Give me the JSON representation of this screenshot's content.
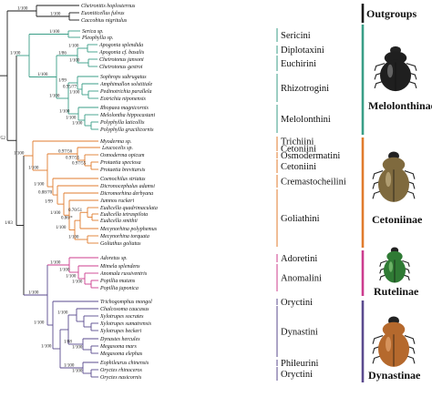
{
  "colors": {
    "outgroup": "#1a1a1a",
    "melolonthinae": "#3a9e87",
    "cetoniinae": "#e07b2d",
    "rutelinae": "#cc3c8e",
    "dynastinae": "#5a4a8e"
  },
  "taxa": [
    "Cheironitis hoplosternus",
    "Euoniticellus fulvus",
    "Caccobius nigritulus",
    "Serica sp.",
    "Pleophylla sp.",
    "Apogonia splendida",
    "Apogonia cf. basalis",
    "Cheirotonus jansoni",
    "Cheirotonus gestroi",
    "Sophrops subrugatus",
    "Amphimallon solstitiale",
    "Pedinotrichia parallela",
    "Eotrichia niponensis",
    "Rhopaea magnicornis",
    "Melolontha hippocastani",
    "Polyphylla laticollis",
    "Polyphylla gracilicornis",
    "Myoderma sp.",
    "Leucocelis sp.",
    "Osmoderma opicum",
    "Protaetia speciosa",
    "Protaetia brevitarsis",
    "Coenochilus striatus",
    "Dicronocephalus adamsi",
    "Dicromorhina derbyana",
    "Jumnos ruckeri",
    "Eudicella quadrimaculata",
    "Eudicella tetraspilota",
    "Eudicella smithii",
    "Mecynorhina polyphemus",
    "Mecynorhina torquata",
    "Goliathus goliatus",
    "Adoretus sp.",
    "Mimela splendens",
    "Anomala russiventris",
    "Popillia mutans",
    "Popillia japonica",
    "Trichogomphus mongol",
    "Chalcosoma caucasus",
    "Xylotrupes socrates",
    "Xylotrupes sumatrensis",
    "Xylotrupes beckeri",
    "Dynastes hercules",
    "Megasoma mars",
    "Megasoma elephas",
    "Eophileurus chinensis",
    "Oryctes rhinoceros",
    "Oryctes nasicornis"
  ],
  "support_values": [
    "1/100",
    "1/100",
    "1/100",
    "1/100",
    "1/86",
    "1/100",
    "1/100",
    "0.95/77",
    "1/99",
    "1/100",
    "1/100",
    "1/100",
    "1/100",
    "1/100",
    "1/100",
    "0.97/55",
    "0.97/56",
    "0.97/55",
    "0.88/70",
    "0.86/*",
    "0.70/51",
    "1/100",
    "1/100",
    "1/100",
    "1/100",
    "1/100",
    "1/100",
    "1/100",
    "1/100",
    "1/100",
    "1/52",
    "1/83",
    "1/100",
    "1/99",
    "1/100",
    "1/100",
    "1/100",
    "1/100",
    "1/88",
    "1/100",
    "1/100",
    "1/100"
  ],
  "tribes": [
    "Sericini",
    "Diplotaxini",
    "Euchirini",
    "Rhizotrogini",
    "Melolonthini",
    "Trichiini",
    "Cetoniini",
    "Osmodermatini",
    "Cetoniini",
    "Cremastocheilini",
    "Goliathini",
    "Adoretini",
    "Anomalini",
    "Oryctini",
    "Dynastini",
    "Phileurini",
    "Oryctini"
  ],
  "subfamilies": [
    "Outgroups",
    "Melolonthinae",
    "Cetoniinae",
    "Rutelinae",
    "Dynastinae"
  ],
  "icons": [
    "melolonthinae-beetle-icon",
    "cetoniinae-beetle-icon",
    "rutelinae-beetle-icon",
    "dynastinae-beetle-icon"
  ]
}
